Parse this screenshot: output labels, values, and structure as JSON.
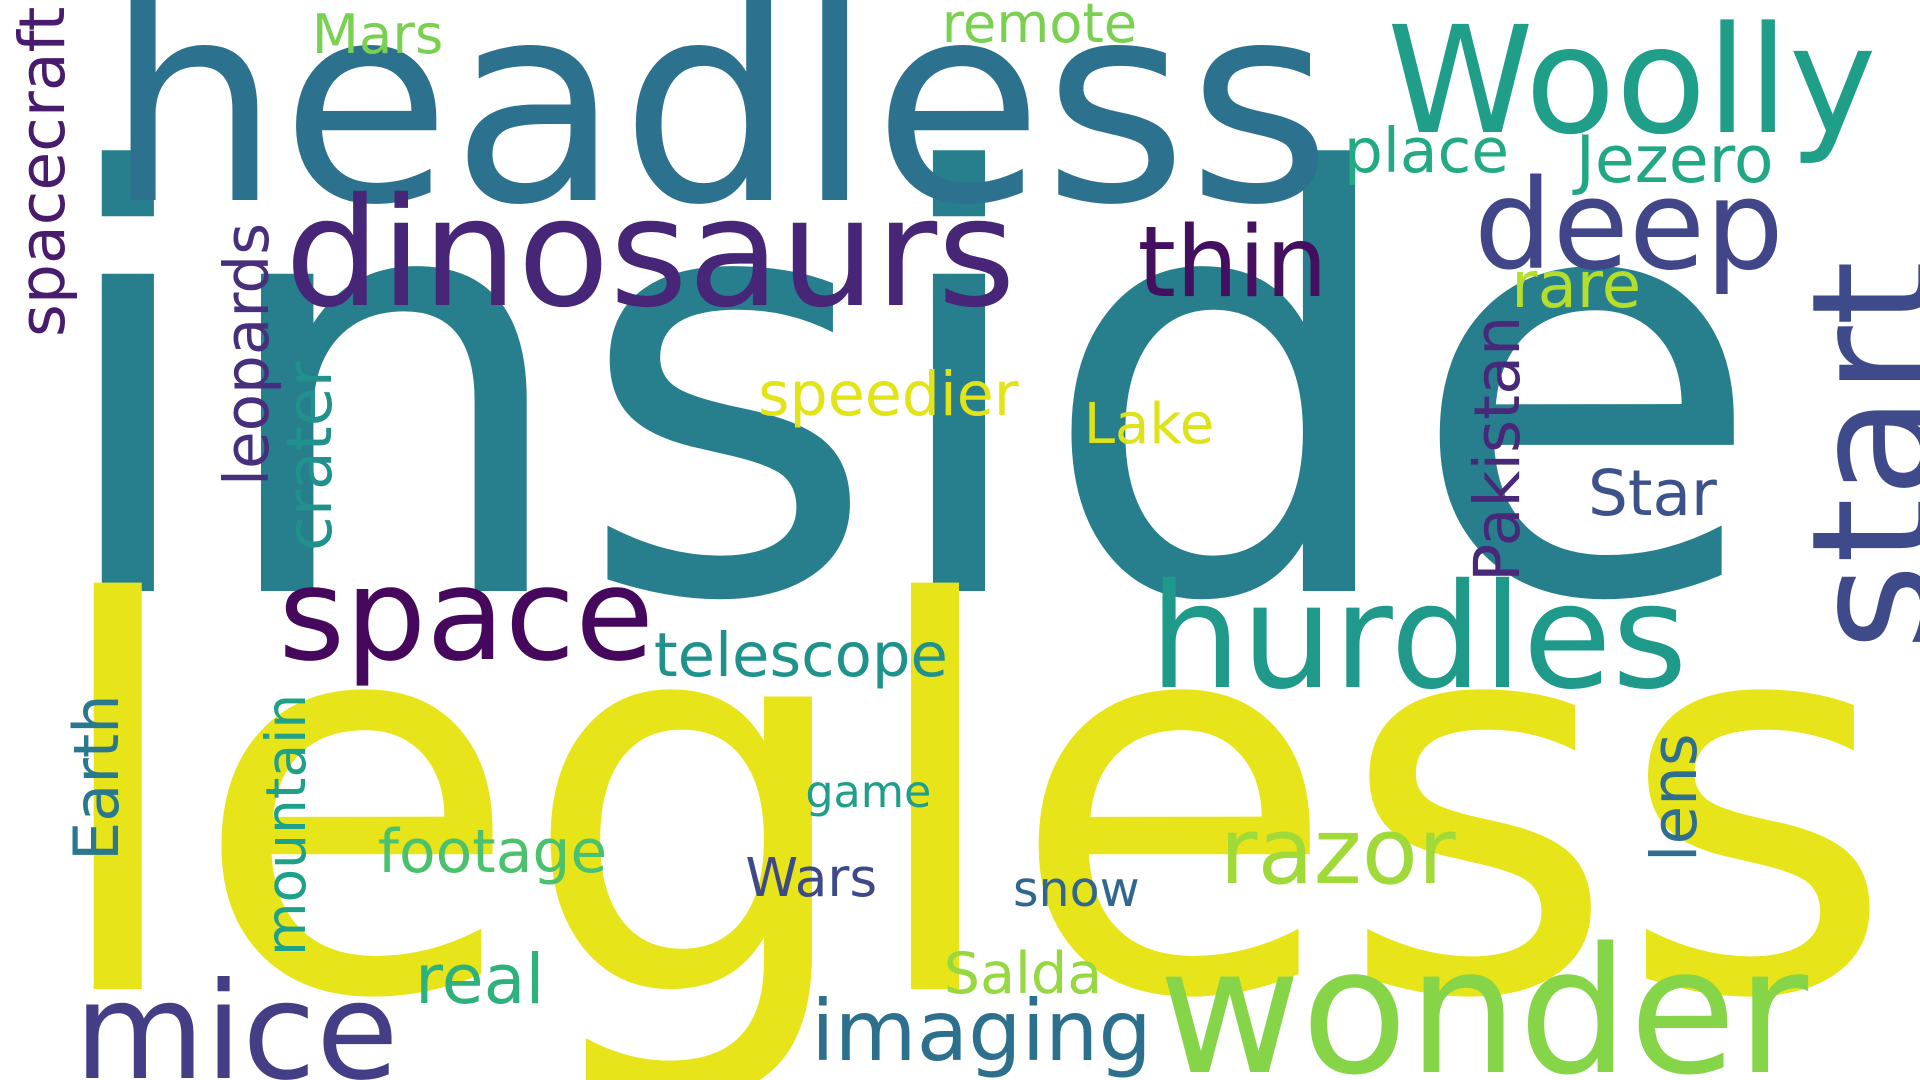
{
  "words": [
    {
      "text": "inside",
      "color": "#277f8e",
      "vertical": false
    },
    {
      "text": "legless",
      "color": "#e8e41a",
      "vertical": false
    },
    {
      "text": "headless",
      "color": "#2c718e",
      "vertical": false
    },
    {
      "text": "wonder",
      "color": "#86d549",
      "vertical": false
    },
    {
      "text": "Woolly",
      "color": "#1f9e89",
      "vertical": false
    },
    {
      "text": "dinosaurs",
      "color": "#482677",
      "vertical": false
    },
    {
      "text": "deep",
      "color": "#404688",
      "vertical": false
    },
    {
      "text": "start",
      "color": "#3e4a89",
      "vertical": true
    },
    {
      "text": "space",
      "color": "#46085c",
      "vertical": false
    },
    {
      "text": "hurdles",
      "color": "#1f9a8a",
      "vertical": false
    },
    {
      "text": "mice",
      "color": "#433e85",
      "vertical": false
    },
    {
      "text": "imaging",
      "color": "#2d708e",
      "vertical": false
    },
    {
      "text": "razor",
      "color": "#a0da39",
      "vertical": false
    },
    {
      "text": "thin",
      "color": "#440f5e",
      "vertical": false
    },
    {
      "text": "place",
      "color": "#23a983",
      "vertical": false
    },
    {
      "text": "Jezero",
      "color": "#22a785",
      "vertical": false
    },
    {
      "text": "remote",
      "color": "#7ad151",
      "vertical": false
    },
    {
      "text": "Mars",
      "color": "#7ad151",
      "vertical": false
    },
    {
      "text": "spacecraft",
      "color": "#481b6d",
      "vertical": true
    },
    {
      "text": "leopards",
      "color": "#472f7d",
      "vertical": true
    },
    {
      "text": "crater",
      "color": "#21918c",
      "vertical": true
    },
    {
      "text": "speedier",
      "color": "#e2e418",
      "vertical": false
    },
    {
      "text": "rare",
      "color": "#b5de2b",
      "vertical": false
    },
    {
      "text": "Lake",
      "color": "#dde318",
      "vertical": false
    },
    {
      "text": "Pakistan",
      "color": "#482878",
      "vertical": true
    },
    {
      "text": "Star",
      "color": "#3b528b",
      "vertical": false
    },
    {
      "text": "telescope",
      "color": "#20928c",
      "vertical": false
    },
    {
      "text": "Earth",
      "color": "#2a788e",
      "vertical": true
    },
    {
      "text": "mountain",
      "color": "#1fa088",
      "vertical": true
    },
    {
      "text": "game",
      "color": "#1f9e89",
      "vertical": false
    },
    {
      "text": "footage",
      "color": "#4ac16d",
      "vertical": false
    },
    {
      "text": "Wars",
      "color": "#3e4989",
      "vertical": false
    },
    {
      "text": "snow",
      "color": "#31668e",
      "vertical": false
    },
    {
      "text": "lens",
      "color": "#2e6e8e",
      "vertical": true
    },
    {
      "text": "real",
      "color": "#2db27d",
      "vertical": false
    },
    {
      "text": "Salda",
      "color": "#95d840",
      "vertical": false
    }
  ]
}
